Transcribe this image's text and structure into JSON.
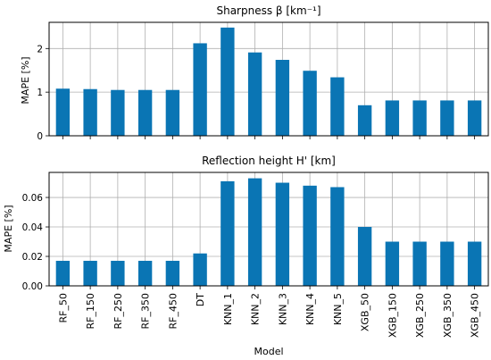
{
  "chart_data": [
    {
      "type": "bar",
      "title": "Sharpness β [km⁻¹]",
      "ylabel": "MAPE [%]",
      "xlabel": "",
      "categories": [
        "RF_50",
        "RF_150",
        "RF_250",
        "RF_350",
        "RF_450",
        "DT",
        "KNN_1",
        "KNN_2",
        "KNN_3",
        "KNN_4",
        "KNN_5",
        "XGB_50",
        "XGB_150",
        "XGB_250",
        "XGB_350",
        "XGB_450"
      ],
      "values": [
        1.08,
        1.07,
        1.05,
        1.05,
        1.05,
        2.12,
        2.48,
        1.91,
        1.74,
        1.49,
        1.34,
        0.7,
        0.81,
        0.81,
        0.81,
        0.81
      ],
      "ylim": [
        0,
        2.6
      ],
      "yticks": [
        0,
        1,
        2
      ],
      "ytick_labels": [
        "0",
        "1",
        "2"
      ],
      "grid": true,
      "bar_color": "#0a75b4",
      "show_xtick_labels": false
    },
    {
      "type": "bar",
      "title": "Reflection height H' [km]",
      "ylabel": "MAPE [%]",
      "xlabel": "Model",
      "categories": [
        "RF_50",
        "RF_150",
        "RF_250",
        "RF_350",
        "RF_450",
        "DT",
        "KNN_1",
        "KNN_2",
        "KNN_3",
        "KNN_4",
        "KNN_5",
        "XGB_50",
        "XGB_150",
        "XGB_250",
        "XGB_350",
        "XGB_450"
      ],
      "values": [
        0.017,
        0.017,
        0.017,
        0.017,
        0.017,
        0.022,
        0.071,
        0.073,
        0.07,
        0.068,
        0.067,
        0.04,
        0.03,
        0.03,
        0.03,
        0.03
      ],
      "ylim": [
        0,
        0.077
      ],
      "yticks": [
        0,
        0.02,
        0.04,
        0.06
      ],
      "ytick_labels": [
        "0.00",
        "0.02",
        "0.04",
        "0.06"
      ],
      "grid": true,
      "bar_color": "#0a75b4",
      "show_xtick_labels": true
    }
  ]
}
